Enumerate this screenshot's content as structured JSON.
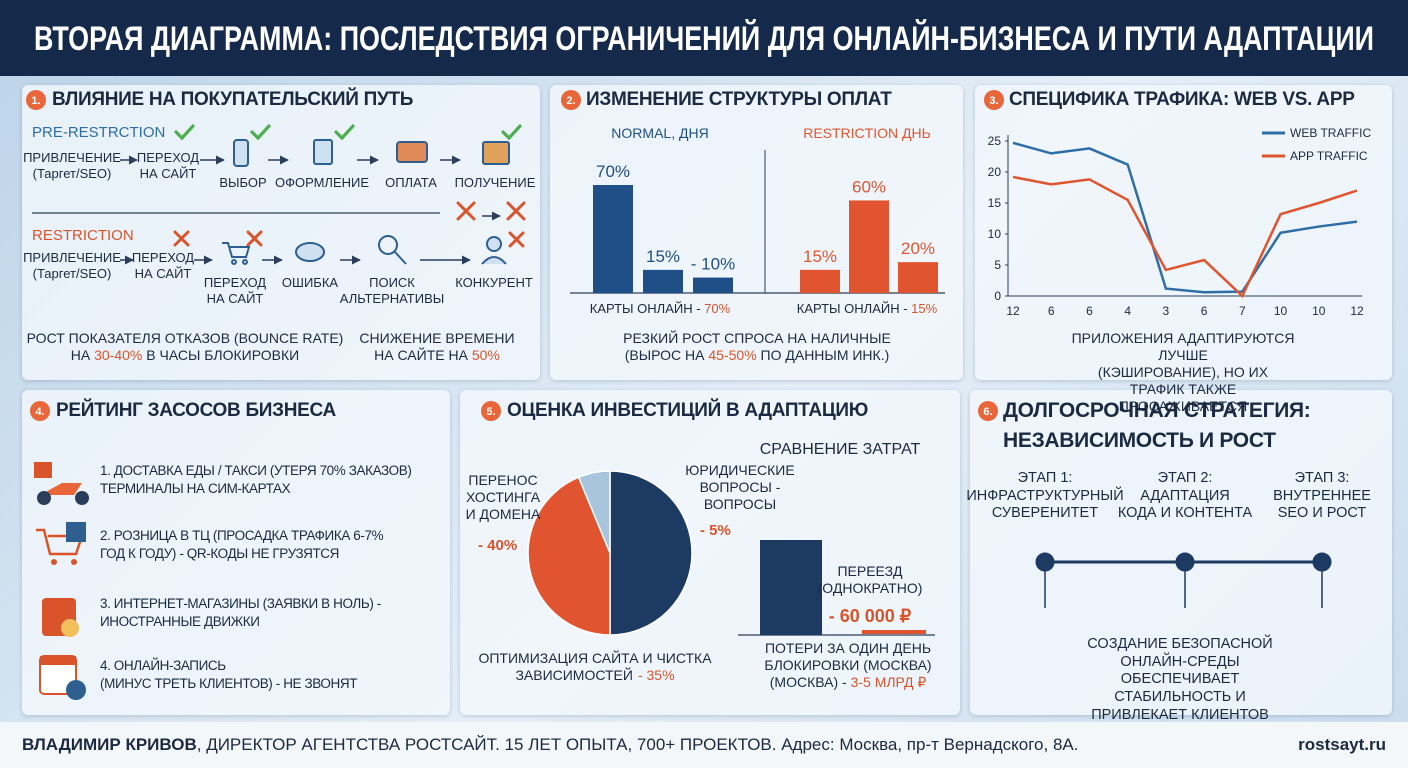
{
  "header": {
    "title": "ВТОРАЯ ДИАГРАММА: ПОСЛЕДСТВИЯ ОГРАНИЧЕНИЙ ДЛЯ ОНЛАЙН-БИЗНЕСА И ПУТИ АДАПТАЦИИ"
  },
  "journey": {
    "number": "1.",
    "title": "ВЛИЯНИЕ НА ПОКУПАТЕЛЬСКИЙ ПУТЬ",
    "pre_label": "PRE-RESTRCTION",
    "pre_steps": [
      "ПРИВЛЕЧЕНИЕ\n(Таргет/SEO)",
      "ПЕРЕХОД\nНА САЙТ",
      "ВЫБОР",
      "ОФОРМЛЕНИЕ",
      "ОПЛАТА",
      "ПОЛУЧЕНИЕ"
    ],
    "restriction_label": "RESTRICTION",
    "restriction_steps": [
      "ПРИВЛЕЧЕНИЕ\n(Таргет/SEO)",
      "ПЕРЕХОД\nНА САЙТ",
      "ПЕРЕХОД\nНА САЙТ",
      "ОШИБКА",
      "ПОИСК\nАЛЬТЕРНАТИВЫ",
      "КОНКУРЕНТ"
    ],
    "bounce": [
      "РОСТ ПОКАЗАТЕЛЯ ОТКАЗОВ (BOUNCE RATE)\nНА ",
      "30-40%",
      " В ЧАСЫ БЛОКИРОВКИ"
    ],
    "time": [
      "СНИЖЕНИЕ ВРЕМЕНИ\nНА САЙТЕ НА ",
      "50%"
    ]
  },
  "payments": {
    "number": "2.",
    "title": "ИЗМЕНЕНИЕ СТРУКТУРЫ ОПЛАТ",
    "caption": [
      "РЕЗКИЙ РОСТ СПРОСА НА НАЛИЧНЫЕ\n(ВЫРОС НА ",
      "45-50%",
      " ПО ДАННЫМ ИНК.)"
    ]
  },
  "traffic": {
    "number": "3.",
    "title": "СПЕЦИФИКА ТРАФИКА: WEB VS. APP",
    "caption": "ПРИЛОЖЕНИЯ АДАПТИРУЮТСЯ ЛУЧШЕ\n(КЭШИРОВАНИЕ), НО ИХ ТРАФИК ТАКЖЕ ПРОСАЖИВАЕТСЯ"
  },
  "ranking": {
    "number": "4.",
    "title": "РЕЙТИНГ ЗАСОСОВ БИЗНЕСА",
    "items": [
      "1. ДОСТАВКА ЕДЫ / ТАКСИ (УТЕРЯ 70% ЗАКАЗОВ)\nТЕРМИНАЛЫ НА СИМ-КАРТАХ",
      "2. РОЗНИЦА В ТЦ (ПРОСАДКА ТРАФИКА 6-7%\nГОД К ГОДУ) - QR-КОДЫ НЕ ГРУЗЯТСЯ",
      "3. ИНТЕРНЕТ-МАГАЗИНЫ (ЗАЯВКИ В НОЛЬ) -\nИНОСТРАННЫЕ ДВИЖКИ",
      "4. ОНЛАЙН-ЗАПИСЬ\n(МИНУС ТРЕТЬ КЛИЕНТОВ) - НЕ ЗВОНЯТ"
    ]
  },
  "investment": {
    "number": "5.",
    "title": "ОЦЕНКА ИНВЕСТИЦИЙ В АДАПТАЦИЮ",
    "losses": [
      "ПОТЕРИ ЗА ОДИН ДЕНЬ\nБЛОКИРОВКИ (МОСКВА)\n(МОСКВА) - ",
      "3-5 МЛРД ₽"
    ]
  },
  "strategy": {
    "number": "6.",
    "title": "ДОЛГОСРОЧНАЯ СТРАТЕГИЯ:\nНЕЗАВИСИМОСТЬ И РОСТ",
    "stages": [
      "ЭТАП 1:\nИНФРАСТРУКТУРНЫЙ\nСУВЕРЕНИТЕТ",
      "ЭТАП 2:\nАДАПТАЦИЯ\nКОДА И КОНТЕНТА",
      "ЭТАП 3:\nВНУТРЕННЕЕ\nSEO И РОСТ"
    ],
    "caption": "СОЗДАНИЕ БЕЗОПАСНОЙ ОНЛАЙН-СРЕДЫ\nОБЕСПЕЧИВАЕТ СТАБИЛЬНОСТЬ И ПРИВЛЕКАЕТ КЛИЕНТОВ\nОТ КОНКУРЕНТОВ, КОТОРЫЕ ТЕРЯЮТ ВЫРУЧКУ"
  },
  "footer": {
    "name": "ВЛАДИМИР КРИВОВ",
    "text": ", ДИРЕКТОР АГЕНТСТВА РОСТСАЙТ. 15 ЛЕТ ОПЫТА, 700+ ПРОЕКТОВ. Адрес: Москва, пр-т Вернадского, 8А.",
    "site": "rostsayt.ru"
  },
  "chart_data": [
    {
      "type": "bar",
      "subtitle": "NORMAL, ДНЯ",
      "categories": [
        null,
        null,
        null
      ],
      "values": [
        70,
        15,
        10
      ],
      "value_labels": [
        "70%",
        "15%",
        "- 10%"
      ],
      "color": "#1f4f86",
      "footnote": [
        "КАРТЫ ОНЛАЙН - ",
        "70%"
      ]
    },
    {
      "type": "bar",
      "subtitle": "RESTRICTION ДНЬ",
      "categories": [
        null,
        null,
        null
      ],
      "values": [
        15,
        60,
        20
      ],
      "value_labels": [
        "15%",
        "60%",
        "20%"
      ],
      "color": "#e0552f",
      "footnote": [
        "КАРТЫ ОНЛАЙН - ",
        "15%"
      ]
    },
    {
      "type": "line",
      "categories": [
        "12",
        "6",
        "6",
        "4",
        "3",
        "6",
        "7",
        "10",
        "10",
        "12"
      ],
      "series": [
        {
          "name": "WEB TRAFFIC",
          "color": "#2e6ea6",
          "values": [
            24.7,
            23,
            23.8,
            21.2,
            1.2,
            0.6,
            0.7,
            10.2,
            11.2,
            12
          ]
        },
        {
          "name": "APP TRAFFIC",
          "color": "#e0552f",
          "values": [
            19.2,
            18,
            18.8,
            15.5,
            4.2,
            5.8,
            0,
            13.2,
            15,
            17
          ]
        }
      ],
      "ylim": [
        0,
        25
      ],
      "yticks": [
        0,
        5,
        10,
        15,
        20,
        25
      ],
      "legend": "upper right"
    },
    {
      "type": "pie",
      "categories": [
        "ПЕРЕНОС\nХОСТИНГА\nИ ДОМЕНА",
        "ОПТИМИЗАЦИЯ САЙТА И ЧИСТКА\nЗАВИСИМОСТЕЙ",
        "ЮРИДИЧЕСКИЕ\nВОПРОСЫ -\nВОПРОСЫ"
      ],
      "values": [
        40,
        35,
        5
      ],
      "value_labels": [
        "- 40%",
        "- 35%",
        "- 5%"
      ],
      "colors": [
        "#1d3a63",
        "#e0552f",
        "#a9c4dd"
      ]
    },
    {
      "type": "bar",
      "title": "СРАВНЕНИЕ ЗАТРАТ",
      "categories": [
        "ПЕРЕЕЗД\n(ОДНОКРАТНО)"
      ],
      "values": [
        60000
      ],
      "value_labels": [
        "- 60 000 ₽"
      ],
      "color": "#1d3a63"
    }
  ]
}
